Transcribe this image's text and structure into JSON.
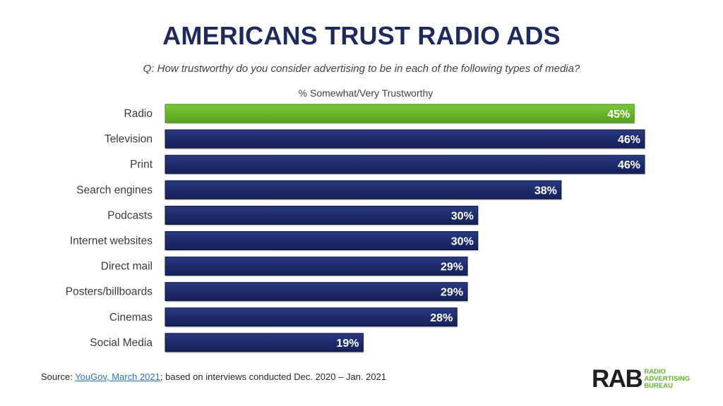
{
  "header": {
    "title": "AMERICANS TRUST RADIO ADS",
    "question": "Q: How trustworthy do you consider advertising to be in each of the following types of media?"
  },
  "chart_data": {
    "type": "bar",
    "orientation": "horizontal",
    "title": "AMERICANS TRUST RADIO ADS",
    "subtitle": "% Somewhat/Very Trustworthy",
    "categories": [
      "Radio",
      "Television",
      "Print",
      "Search engines",
      "Podcasts",
      "Internet websites",
      "Direct mail",
      "Posters/billboards",
      "Cinemas",
      "Social Media"
    ],
    "values": [
      45,
      46,
      46,
      38,
      30,
      30,
      29,
      29,
      28,
      19
    ],
    "value_labels": [
      "45%",
      "46%",
      "46%",
      "38%",
      "30%",
      "30%",
      "29%",
      "29%",
      "28%",
      "19%"
    ],
    "highlight_index": 0,
    "colors": {
      "highlight": "#6ab52a",
      "highlight_border": "#4c8a1c",
      "default": "#1f2c6b",
      "default_border": "#0e1640",
      "label_text": "#ffffff",
      "category_text": "#3a3a3a"
    },
    "xlim": [
      0,
      46
    ],
    "grid": false,
    "legend": "none"
  },
  "footer": {
    "source_prefix": "Source: ",
    "source_link": "YouGov, March 2021",
    "source_suffix": "; based on interviews conducted Dec. 2020 – Jan. 2021"
  },
  "logo": {
    "mark": "RAB",
    "line1": "RADIO",
    "line2": "ADVERTISING",
    "line3": "BUREAU",
    "color": "#64b32e"
  }
}
